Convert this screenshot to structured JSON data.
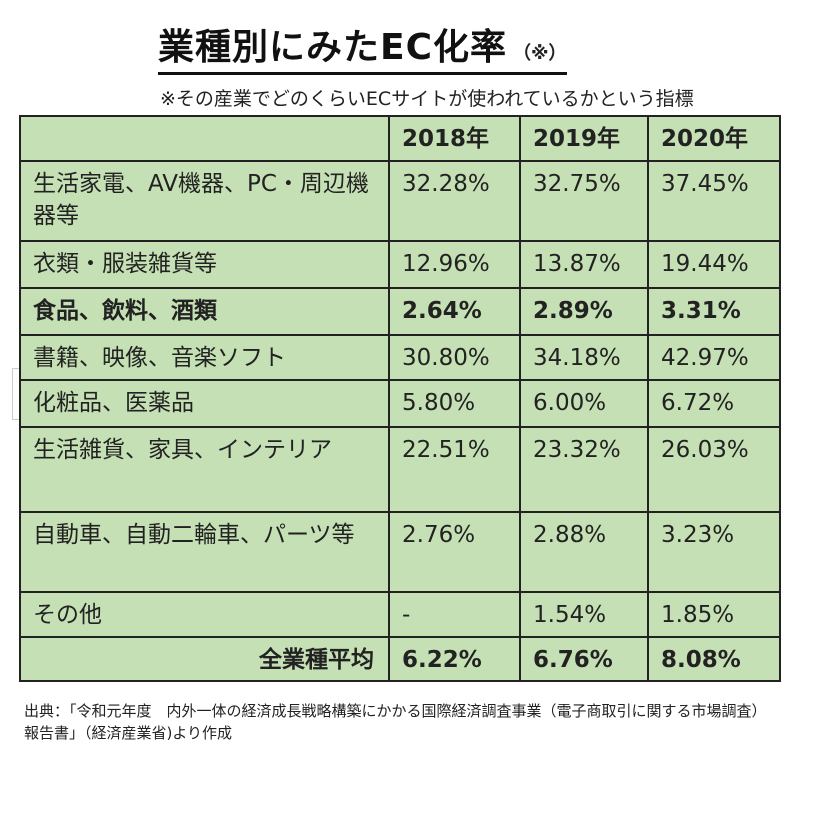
{
  "title": "業種別にみたEC化率",
  "title_mark": "（※）",
  "subtitle": "※その産業でどのくらいECサイトが使われているかという指標",
  "table": {
    "headers": [
      "",
      "2018年",
      "2019年",
      "2020年"
    ],
    "rows": [
      {
        "label": "生活家電、AV機器、PC・周辺機器等",
        "v2018": "32.28%",
        "v2019": "32.75%",
        "v2020": "37.45%"
      },
      {
        "label": "衣類・服装雑貨等",
        "v2018": "12.96%",
        "v2019": "13.87%",
        "v2020": "19.44%"
      },
      {
        "label": "食品、飲料、酒類",
        "v2018": "2.64%",
        "v2019": "2.89%",
        "v2020": "3.31%"
      },
      {
        "label": "書籍、映像、音楽ソフト",
        "v2018": "30.80%",
        "v2019": "34.18%",
        "v2020": "42.97%"
      },
      {
        "label": "化粧品、医薬品",
        "v2018": "5.80%",
        "v2019": "6.00%",
        "v2020": "6.72%"
      },
      {
        "label": "生活雑貨、家具、インテリア",
        "v2018": "22.51%",
        "v2019": "23.32%",
        "v2020": "26.03%"
      },
      {
        "label": "自動車、自動二輪車、パーツ等",
        "v2018": "2.76%",
        "v2019": "2.88%",
        "v2020": "3.23%"
      },
      {
        "label": "その他",
        "v2018": "-",
        "v2019": "1.54%",
        "v2020": "1.85%"
      }
    ],
    "total": {
      "label": "全業種平均",
      "v2018": "6.22%",
      "v2019": "6.76%",
      "v2020": "8.08%"
    }
  },
  "source": "出典：「令和元年度　内外一体の経済成長戦略構築にかかる国際経済調査事業（電子商取引に関する市場調査）報告書」（経済産業省)より作成",
  "colors": {
    "cell_bg": "#c5e0b4",
    "total_bg": "#00b050",
    "highlight_text": "#e8141c",
    "header_text": "#ffffff"
  }
}
